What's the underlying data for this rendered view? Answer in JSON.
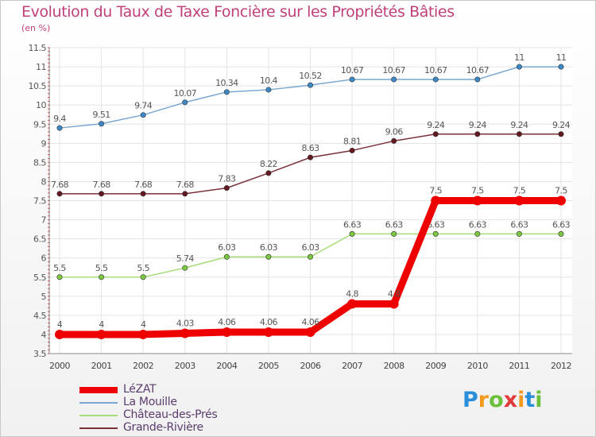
{
  "chart_data": {
    "type": "line",
    "title": "Evolution du Taux de Taxe Foncière sur les Propriétés Bâties",
    "unit_label": "(en %)",
    "x": [
      "2000",
      "2001",
      "2002",
      "2003",
      "2004",
      "2005",
      "2006",
      "2007",
      "2008",
      "2009",
      "2010",
      "2011",
      "2012"
    ],
    "ylim": [
      3.5,
      11.5
    ],
    "yticks": [
      "3.5",
      "4",
      "4.5",
      "5",
      "5.5",
      "6",
      "6.5",
      "7",
      "7.5",
      "8",
      "8.5",
      "9",
      "9.5",
      "10",
      "10.5",
      "11",
      "11.5"
    ],
    "grid": true,
    "series": [
      {
        "name": "La Mouille",
        "color": "#7aa7d2",
        "dot": "#3d88c6",
        "values": [
          9.4,
          9.51,
          9.74,
          10.07,
          10.34,
          10.4,
          10.52,
          10.67,
          10.67,
          10.67,
          10.67,
          11,
          11
        ],
        "labels": [
          "9.4",
          "9.51",
          "9.74",
          "10.07",
          "10.34",
          "10.4",
          "10.52",
          "10.67",
          "10.67",
          "10.67",
          "10.67",
          "11",
          "11"
        ]
      },
      {
        "name": "Grande-Rivière",
        "color": "#7a3038",
        "dot": "#641820",
        "values": [
          7.68,
          7.68,
          7.68,
          7.68,
          7.83,
          8.22,
          8.63,
          8.81,
          9.06,
          9.24,
          9.24,
          9.24,
          9.24
        ],
        "labels": [
          "7.68",
          "7.68",
          "7.68",
          "7.68",
          "7.83",
          "8.22",
          "8.63",
          "8.81",
          "9.06",
          "9.24",
          "9.24",
          "9.24",
          "9.24"
        ]
      },
      {
        "name": "Château-des-Prés",
        "color": "#a6dc7a",
        "dot": "#7cc840",
        "values": [
          5.5,
          5.5,
          5.5,
          5.74,
          6.03,
          6.03,
          6.03,
          6.63,
          6.63,
          6.63,
          6.63,
          6.63,
          6.63
        ],
        "labels": [
          "5.5",
          "5.5",
          "5.5",
          "5.74",
          "6.03",
          "6.03",
          "6.03",
          "6.63",
          "6.63",
          "6.63",
          "6.63",
          "6.63",
          "6.63"
        ]
      },
      {
        "name": "LéZAT",
        "color": "#ee0000",
        "dot": "#ee0000",
        "values": [
          4,
          4,
          4,
          4.03,
          4.06,
          4.06,
          4.06,
          4.8,
          4.8,
          7.5,
          7.5,
          7.5,
          7.5
        ],
        "labels": [
          "4",
          "4",
          "4",
          "4.03",
          "4.06",
          "4.06",
          "4.06",
          "4.8",
          "4.8",
          "7.5",
          "7.5",
          "7.5",
          "7.5"
        ]
      }
    ],
    "legend": {
      "position": "bottom-left",
      "items": [
        {
          "name": "LéZAT",
          "color": "#ee0000"
        },
        {
          "name": "La Mouille",
          "color": "#7aa7d2"
        },
        {
          "name": "Château-des-Prés",
          "color": "#a6dc7a"
        },
        {
          "name": "Grande-Rivière",
          "color": "#7a3038"
        }
      ]
    }
  },
  "brand": {
    "letters": [
      "P",
      "r",
      "o",
      "x",
      "i",
      "t",
      "i"
    ],
    "colors": [
      "#2a8fd8",
      "#f39a1e",
      "#6bbf3a",
      "#e23a3a",
      "#f39a1e",
      "#2a8fd8",
      "#6bbf3a"
    ]
  }
}
